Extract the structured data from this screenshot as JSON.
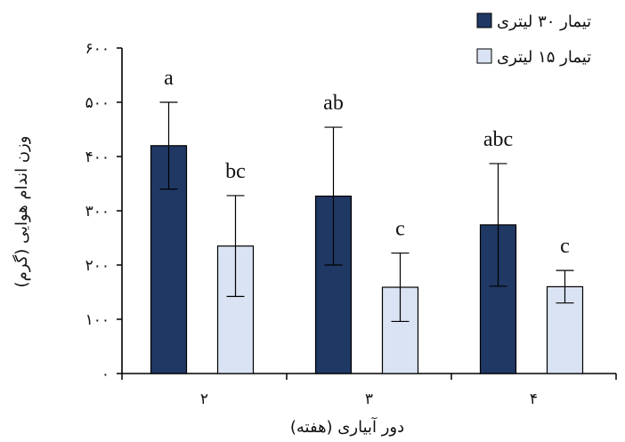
{
  "chart_data": {
    "type": "bar",
    "title": "",
    "xlabel": "دور آبیاری (هفته)",
    "ylabel": "وزن اندام هوایی (گرم)",
    "ylim": [
      0,
      600
    ],
    "yticks": [
      0,
      100,
      200,
      300,
      400,
      500,
      600
    ],
    "ytick_labels": [
      "۰",
      "۱۰۰",
      "۲۰۰",
      "۳۰۰",
      "۴۰۰",
      "۵۰۰",
      "۶۰۰"
    ],
    "categories": [
      "۲",
      "۳",
      "۴"
    ],
    "grid": false,
    "legend_position": "top-right",
    "series": [
      {
        "name": "تیمار ۳۰ لیتری",
        "color": "#1f3864",
        "values": [
          420,
          327,
          274
        ],
        "errors": [
          80,
          127,
          113
        ],
        "labels": [
          "a",
          "ab",
          "abc"
        ]
      },
      {
        "name": "تیمار ۱۵ لیتری",
        "color": "#dae3f3",
        "values": [
          235,
          159,
          160
        ],
        "errors": [
          93,
          63,
          30
        ],
        "labels": [
          "bc",
          "c",
          "c"
        ]
      }
    ]
  }
}
